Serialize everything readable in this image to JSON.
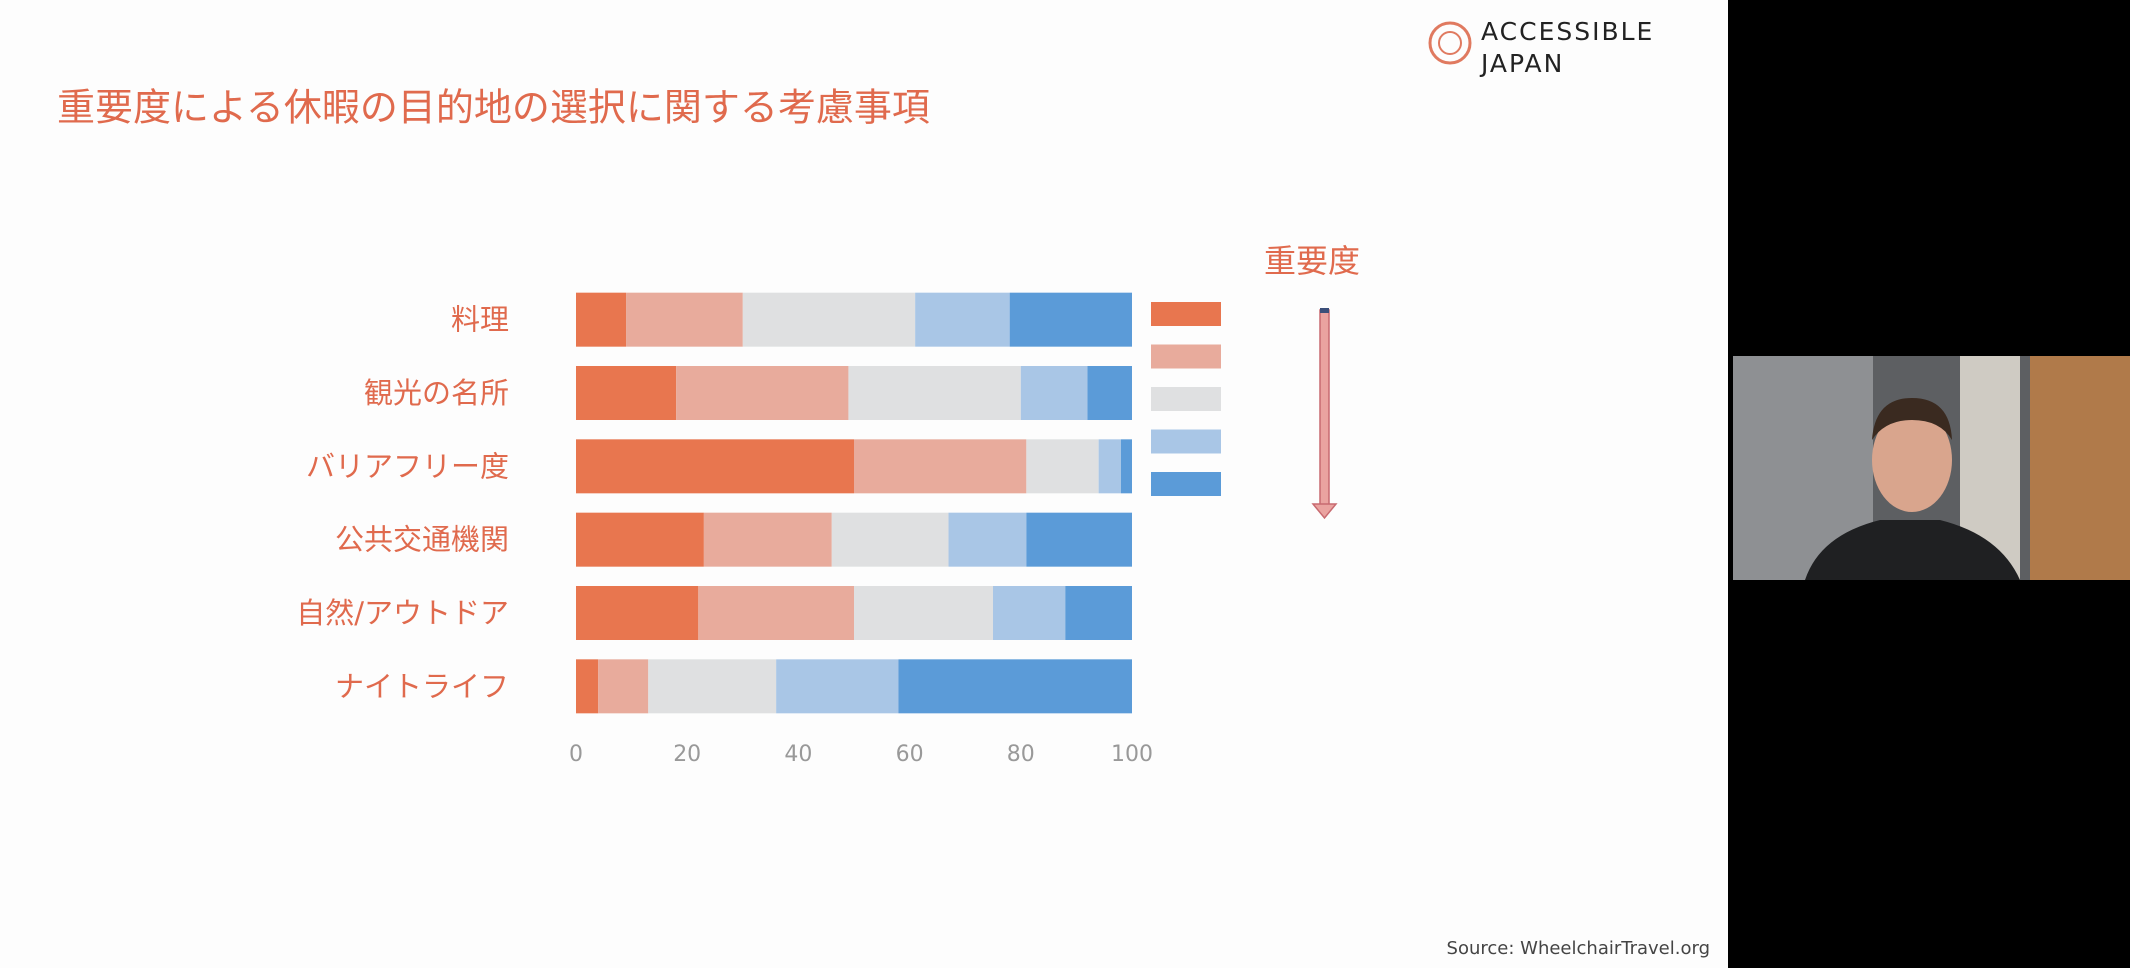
{
  "logo": {
    "line1": "ACCESSIBLE",
    "line2": "JAPAN"
  },
  "source": "Source: WheelchairTravel.org",
  "chart_data": {
    "type": "bar",
    "orientation": "horizontal",
    "stacked": true,
    "title": "重要度による休暇の目的地の選択に関する考慮事項",
    "legend_title": "重要度",
    "categories": [
      "料理",
      "観光の名所",
      "バリアフリー度",
      "公共交通機関",
      "自然/アウトドア",
      "ナイトライフ"
    ],
    "series": [
      {
        "color": "#e8764f",
        "values": [
          9,
          18,
          50,
          23,
          22,
          4
        ]
      },
      {
        "color": "#e8ab9c",
        "values": [
          21,
          31,
          31,
          23,
          28,
          9
        ]
      },
      {
        "color": "#dfe0e1",
        "values": [
          31,
          31,
          13,
          21,
          25,
          23
        ]
      },
      {
        "color": "#a9c6e6",
        "values": [
          17,
          12,
          4,
          14,
          13,
          22
        ]
      },
      {
        "color": "#5b9bd8",
        "values": [
          22,
          8,
          2,
          19,
          12,
          42
        ]
      }
    ],
    "xlim": [
      0,
      100
    ],
    "xticks": [
      0,
      20,
      40,
      60,
      80,
      100
    ],
    "grid": false
  }
}
